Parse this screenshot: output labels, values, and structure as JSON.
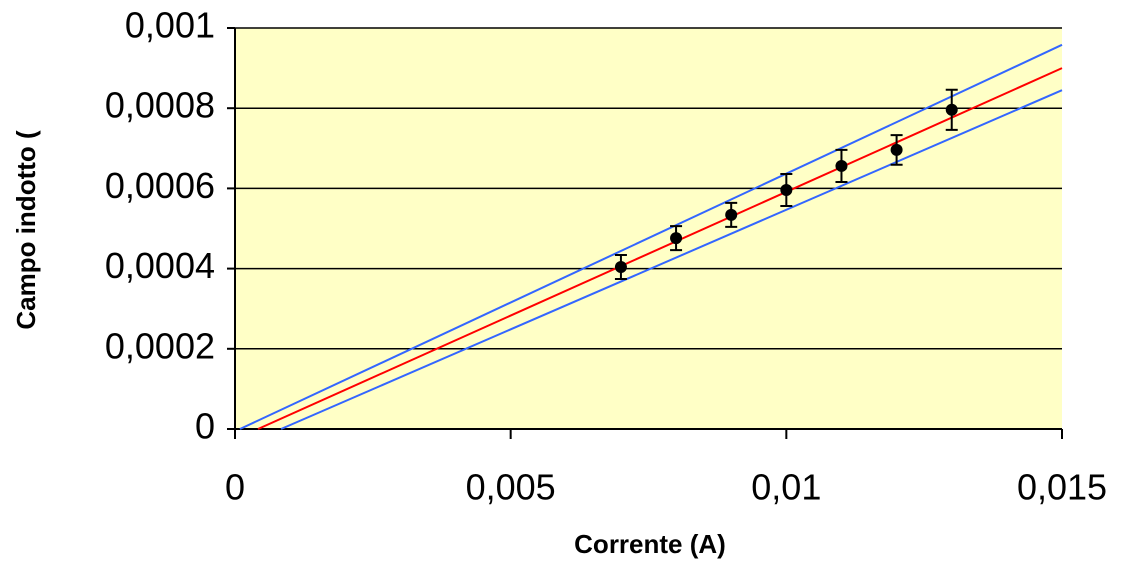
{
  "chart_data": {
    "type": "scatter",
    "x_label": "Corrente (A)",
    "y_label": "Campo indotto (",
    "xlim": [
      0,
      0.015
    ],
    "ylim": [
      0,
      0.001
    ],
    "xticks": [
      0,
      {
        "value": 0.005,
        "label": "0,005"
      },
      {
        "value": 0.01,
        "label": "0,01"
      },
      {
        "value": 0.015,
        "label": "0,015"
      }
    ],
    "yticks": [
      0,
      {
        "value": 0.0002,
        "label": "0,0002"
      },
      {
        "value": 0.0004,
        "label": "0,0004"
      },
      {
        "value": 0.0006,
        "label": "0,0006"
      },
      {
        "value": 0.0008,
        "label": "0,0008"
      },
      {
        "value": 0.001,
        "label": "0,001"
      }
    ],
    "grid": true,
    "series": [
      {
        "type": "scatter",
        "color": "#000000",
        "x": [
          0.007,
          0.008,
          0.009,
          0.01,
          0.011,
          0.012,
          0.013
        ],
        "values": [
          0.000404,
          0.000476,
          0.000534,
          0.000596,
          0.000656,
          0.000696,
          0.000796
        ],
        "errors": [
          3e-05,
          3e-05,
          3e-05,
          4e-05,
          4e-05,
          3.7e-05,
          5e-05
        ]
      },
      {
        "type": "line",
        "color": "#ff0000",
        "x": [
          0.000417,
          0.015
        ],
        "values": [
          0,
          0.0009
        ]
      },
      {
        "type": "line",
        "color": "#3366ff",
        "x": [
          9e-05,
          0.015
        ],
        "values": [
          0,
          0.000958
        ]
      },
      {
        "type": "line",
        "color": "#3366ff",
        "x": [
          0.000835,
          0.015
        ],
        "values": [
          0,
          0.000845
        ]
      }
    ]
  }
}
